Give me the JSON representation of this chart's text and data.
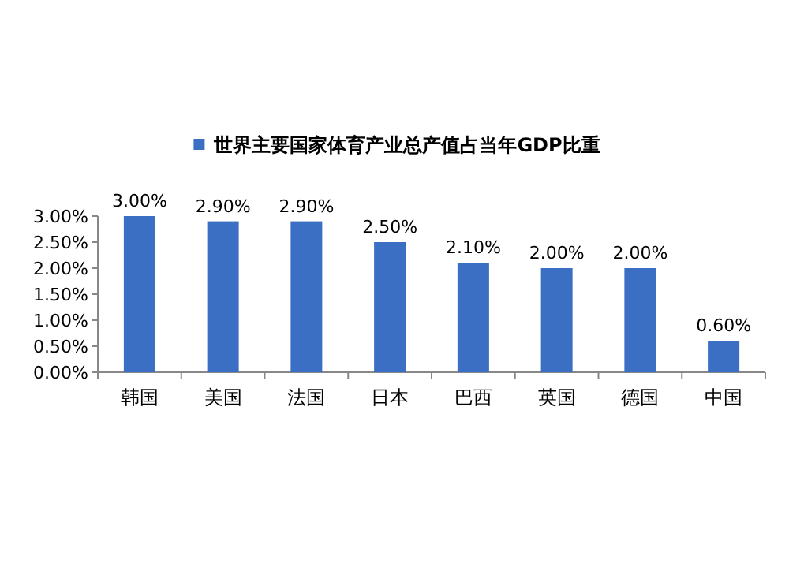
{
  "chart_data": {
    "type": "bar",
    "categories": [
      "韩国",
      "美国",
      "法国",
      "日本",
      "巴西",
      "英国",
      "德国",
      "中国"
    ],
    "series": [
      {
        "name": "世界主要国家体育产业总产值占当年GDP比重",
        "color": "#3a6fc4",
        "values": [
          3.0,
          2.9,
          2.9,
          2.5,
          2.1,
          2.0,
          2.0,
          0.6
        ]
      }
    ],
    "value_labels": [
      "3.00%",
      "2.90%",
      "2.90%",
      "2.50%",
      "2.10%",
      "2.00%",
      "2.00%",
      "0.60%"
    ],
    "ylim": [
      0,
      3
    ],
    "yticks": [
      {
        "value": 0,
        "label": "0.00%"
      },
      {
        "value": 0.5,
        "label": "0.50%"
      },
      {
        "value": 1,
        "label": "1.00%"
      },
      {
        "value": 1.5,
        "label": "1.50%"
      },
      {
        "value": 2,
        "label": "2.00%"
      },
      {
        "value": 2.5,
        "label": "2.50%"
      },
      {
        "value": 3,
        "label": "3.00%"
      }
    ],
    "legend": "top"
  }
}
